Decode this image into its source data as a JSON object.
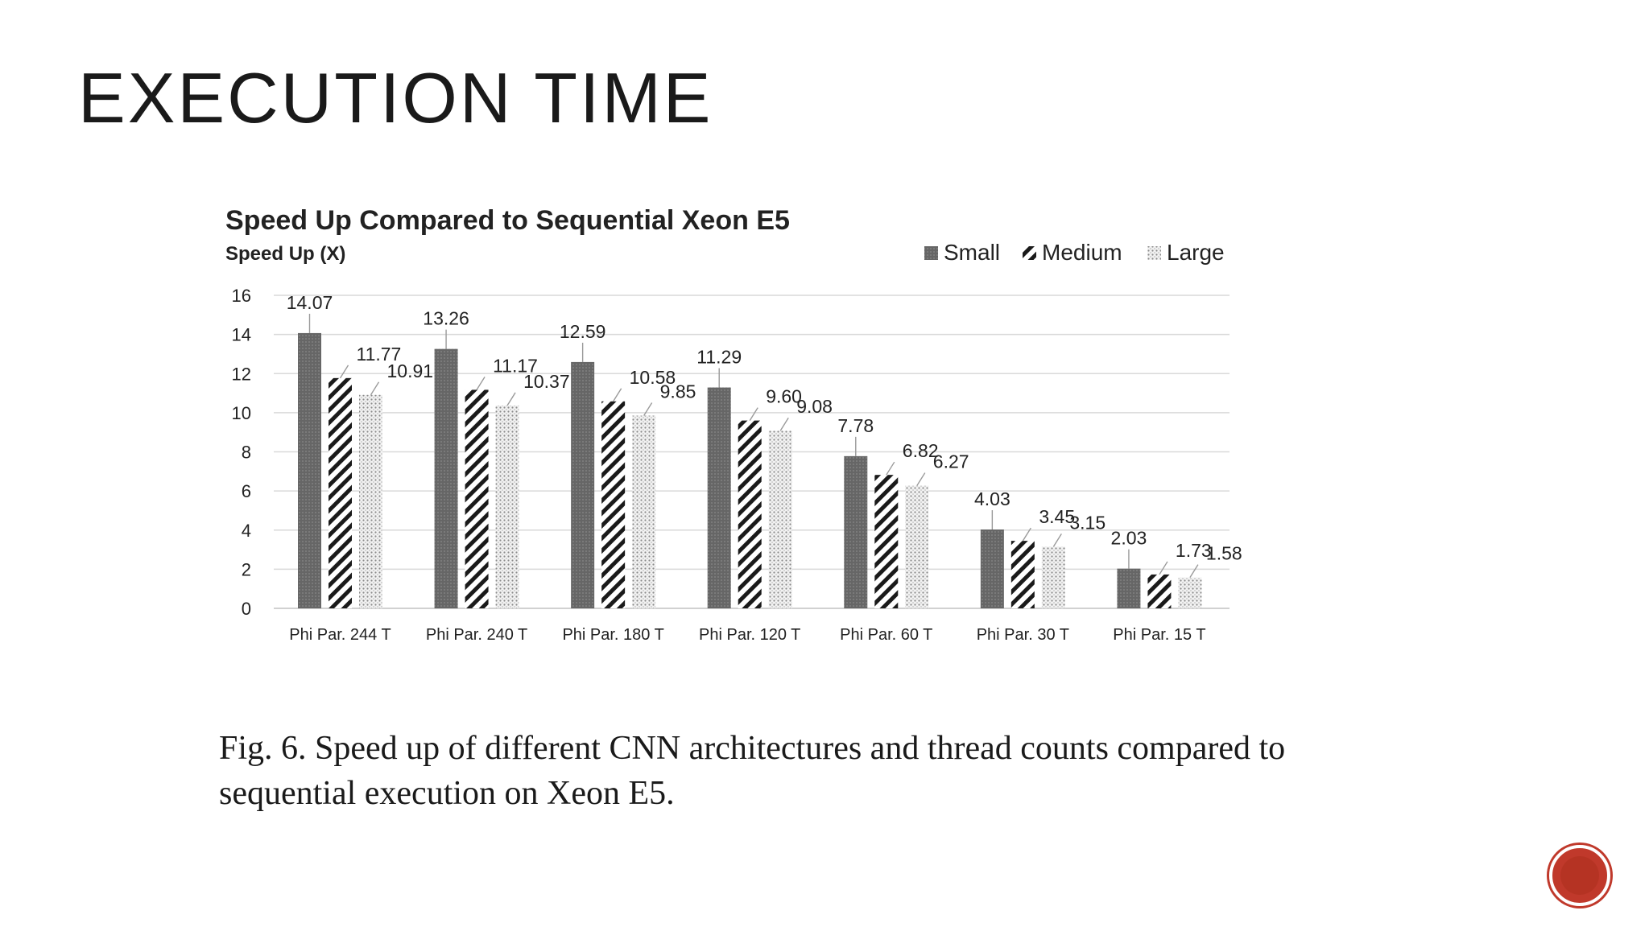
{
  "slide": {
    "title": "EXECUTION TIME",
    "caption": "Fig. 6.  Speed up of different CNN architectures and thread counts compared to sequential execution on Xeon E5."
  },
  "nav": {
    "icon": "circle-icon",
    "color": "#c0392b"
  },
  "chart_data": {
    "type": "bar",
    "title": "Speed Up Compared to Sequential Xeon E5",
    "ylabel": "Speed Up (X)",
    "xlabel": "",
    "ylim": [
      0,
      16
    ],
    "yticks": [
      0,
      2,
      4,
      6,
      8,
      10,
      12,
      14,
      16
    ],
    "grid": true,
    "legend_position": "top-right",
    "categories": [
      "Phi Par. 244 T",
      "Phi Par. 240 T",
      "Phi Par. 180 T",
      "Phi Par. 120 T",
      "Phi Par. 60 T",
      "Phi Par. 30 T",
      "Phi Par. 15 T"
    ],
    "series": [
      {
        "name": "Small",
        "pattern": "solid",
        "values": [
          14.07,
          13.26,
          12.59,
          11.29,
          7.78,
          4.03,
          2.03
        ],
        "labels": [
          "14.07",
          "13.26",
          "12.59",
          "11.29",
          "7.78",
          "4.03",
          "2.03"
        ]
      },
      {
        "name": "Medium",
        "pattern": "stripe",
        "values": [
          11.77,
          11.17,
          10.58,
          9.6,
          6.82,
          3.45,
          1.73
        ],
        "labels": [
          "11.77",
          "11.17",
          "10.58",
          "9.60",
          "6.82",
          "3.45",
          "1.73"
        ]
      },
      {
        "name": "Large",
        "pattern": "dots",
        "values": [
          10.91,
          10.37,
          9.85,
          9.08,
          6.27,
          3.15,
          1.58
        ],
        "labels": [
          "10.91",
          "10.37",
          "9.85",
          "9.08",
          "6.27",
          "3.15",
          "1.58"
        ]
      }
    ],
    "colors": {
      "small": "#6b6b6b",
      "stripe": "#1a1a1a",
      "dots": "#9a9a9a",
      "grid": "#d9d9d9",
      "text": "#222222"
    }
  }
}
